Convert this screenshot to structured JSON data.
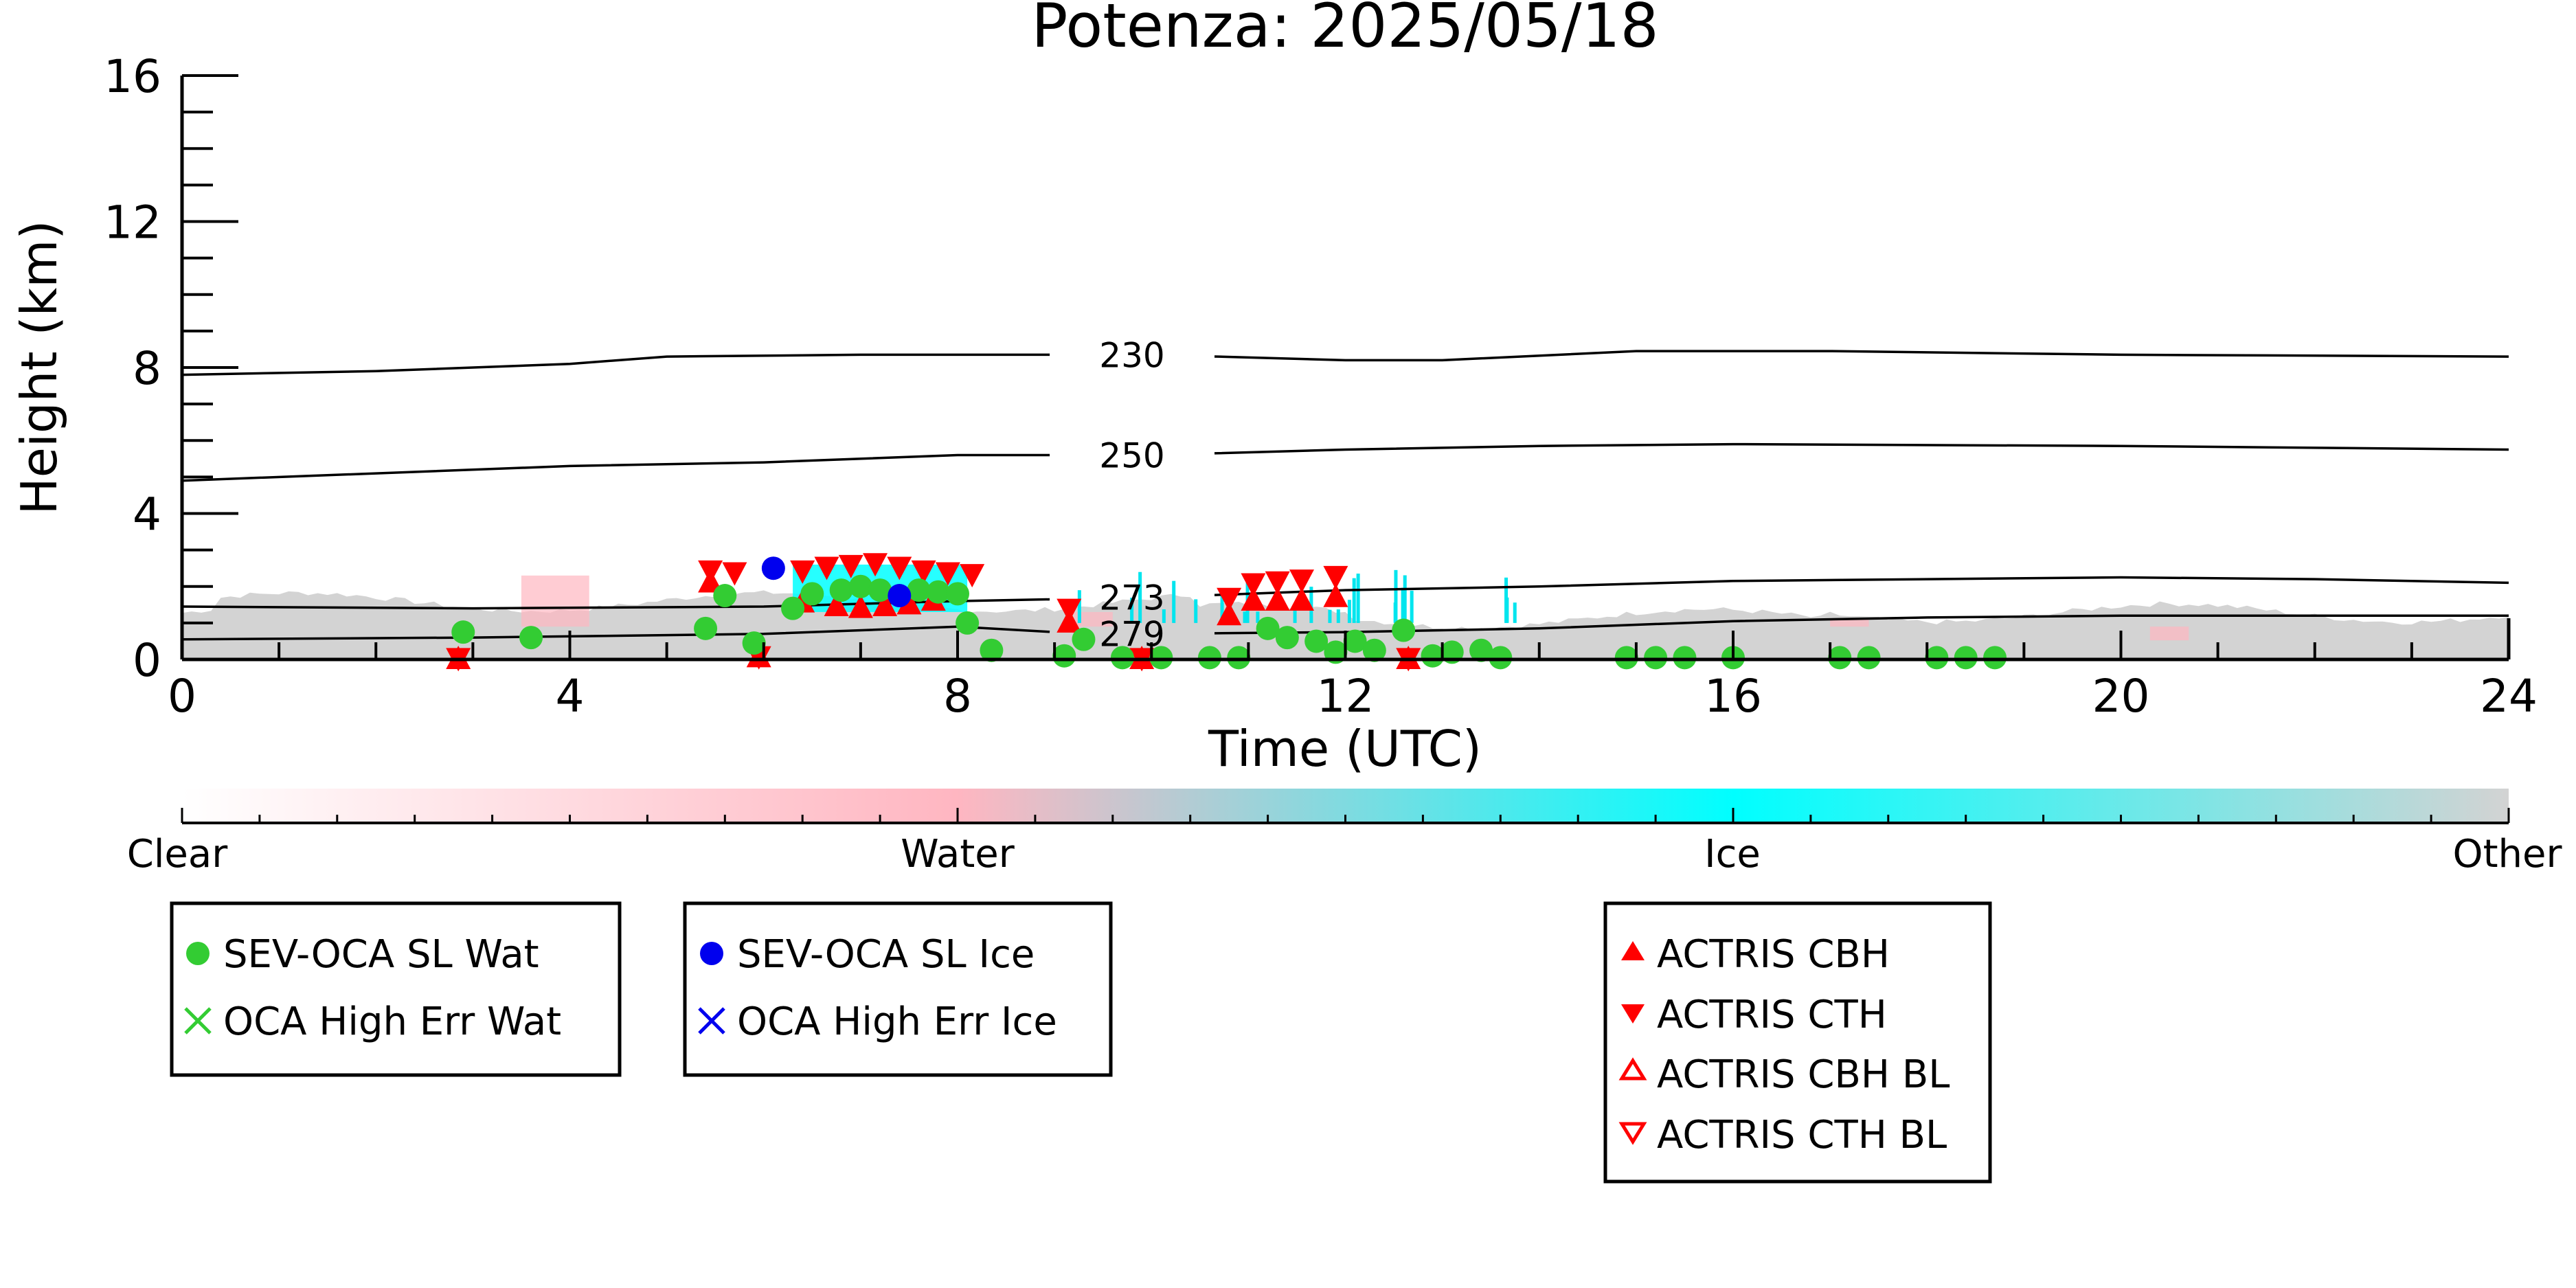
{
  "chart_data": {
    "type": "scatter",
    "title": "Potenza: 2025/05/18",
    "xlabel": "Time (UTC)",
    "ylabel": "Height (km)",
    "xlim": [
      0,
      24
    ],
    "ylim": [
      0,
      16
    ],
    "x_ticks": [
      "0",
      "4",
      "8",
      "12",
      "16",
      "20",
      "24"
    ],
    "y_ticks": [
      "0",
      "4",
      "8",
      "12",
      "16"
    ],
    "grid": false,
    "colorbar": {
      "labels": [
        "Clear",
        "Water",
        "Ice",
        "Other"
      ],
      "colors": [
        "#ffffff",
        "#ffb6c1",
        "#00ffff",
        "#d3d3d3"
      ]
    },
    "contours": [
      {
        "label": "230",
        "label_x": 9.8,
        "points": [
          [
            0,
            7.8
          ],
          [
            2,
            7.9
          ],
          [
            4,
            8.1
          ],
          [
            5,
            8.3
          ],
          [
            7,
            8.35
          ],
          [
            10,
            8.35
          ],
          [
            12,
            8.2
          ],
          [
            13,
            8.2
          ],
          [
            15,
            8.45
          ],
          [
            17,
            8.45
          ],
          [
            20,
            8.35
          ],
          [
            24,
            8.3
          ]
        ]
      },
      {
        "label": "250",
        "label_x": 9.8,
        "points": [
          [
            0,
            4.9
          ],
          [
            2,
            5.1
          ],
          [
            4,
            5.3
          ],
          [
            6,
            5.4
          ],
          [
            8,
            5.6
          ],
          [
            10,
            5.6
          ],
          [
            12,
            5.75
          ],
          [
            14,
            5.85
          ],
          [
            16,
            5.9
          ],
          [
            20,
            5.85
          ],
          [
            24,
            5.75
          ]
        ]
      },
      {
        "label": "273",
        "label_x": 9.8,
        "points": [
          [
            0,
            1.45
          ],
          [
            3,
            1.4
          ],
          [
            6,
            1.45
          ],
          [
            8,
            1.6
          ],
          [
            9,
            1.65
          ],
          [
            10.5,
            1.75
          ],
          [
            12,
            1.9
          ],
          [
            14,
            2.0
          ],
          [
            16,
            2.15
          ],
          [
            18,
            2.2
          ],
          [
            20,
            2.25
          ],
          [
            22,
            2.2
          ],
          [
            24,
            2.1
          ]
        ]
      },
      {
        "label": "279",
        "label_x": 9.8,
        "points": [
          [
            0,
            0.55
          ],
          [
            3,
            0.6
          ],
          [
            6,
            0.7
          ],
          [
            8,
            0.9
          ],
          [
            9,
            0.75
          ],
          [
            10,
            0.7
          ],
          [
            12,
            0.75
          ],
          [
            14,
            0.85
          ],
          [
            15,
            0.95
          ],
          [
            16,
            1.05
          ],
          [
            18,
            1.15
          ],
          [
            20,
            1.2
          ],
          [
            24,
            1.2
          ]
        ]
      }
    ],
    "series": [
      {
        "name": "SEV-OCA SL Wat",
        "marker": "circle",
        "color": "#33cc33",
        "points": [
          [
            2.9,
            0.75
          ],
          [
            3.6,
            0.6
          ],
          [
            5.4,
            0.85
          ],
          [
            5.6,
            1.75
          ],
          [
            5.9,
            0.45
          ],
          [
            6.3,
            1.4
          ],
          [
            6.5,
            1.8
          ],
          [
            6.8,
            1.9
          ],
          [
            7.0,
            2.0
          ],
          [
            7.2,
            1.9
          ],
          [
            7.6,
            1.9
          ],
          [
            7.8,
            1.85
          ],
          [
            8.0,
            1.8
          ],
          [
            8.1,
            1.0
          ],
          [
            8.35,
            0.25
          ],
          [
            9.1,
            0.1
          ],
          [
            9.3,
            0.55
          ],
          [
            9.7,
            0.05
          ],
          [
            10.1,
            0.05
          ],
          [
            10.6,
            0.05
          ],
          [
            10.9,
            0.05
          ],
          [
            11.2,
            0.85
          ],
          [
            11.4,
            0.6
          ],
          [
            11.7,
            0.5
          ],
          [
            11.9,
            0.2
          ],
          [
            12.1,
            0.5
          ],
          [
            12.3,
            0.25
          ],
          [
            12.6,
            0.8
          ],
          [
            12.9,
            0.1
          ],
          [
            13.1,
            0.2
          ],
          [
            13.4,
            0.25
          ],
          [
            13.6,
            0.05
          ],
          [
            14.9,
            0.05
          ],
          [
            15.2,
            0.05
          ],
          [
            15.5,
            0.05
          ],
          [
            16.0,
            0.05
          ],
          [
            17.1,
            0.05
          ],
          [
            17.4,
            0.05
          ],
          [
            18.1,
            0.05
          ],
          [
            18.4,
            0.05
          ],
          [
            18.7,
            0.05
          ]
        ]
      },
      {
        "name": "OCA High Err Wat",
        "marker": "x",
        "color": "#33cc33",
        "points": []
      },
      {
        "name": "SEV-OCA SL Ice",
        "marker": "circle",
        "color": "#0000ee",
        "points": [
          [
            6.1,
            2.5
          ],
          [
            7.4,
            1.75
          ]
        ]
      },
      {
        "name": "OCA High Err Ice",
        "marker": "x",
        "color": "#0000ee",
        "points": []
      },
      {
        "name": "ACTRIS CBH",
        "marker": "triangle-up",
        "color": "#ff0000",
        "points": [
          [
            2.85,
            0.0
          ],
          [
            5.45,
            2.1
          ],
          [
            5.95,
            0.05
          ],
          [
            6.4,
            1.55
          ],
          [
            6.75,
            1.45
          ],
          [
            7.0,
            1.4
          ],
          [
            7.25,
            1.45
          ],
          [
            7.5,
            1.5
          ],
          [
            7.75,
            1.6
          ],
          [
            9.15,
            1.0
          ],
          [
            9.9,
            0.0
          ],
          [
            10.8,
            1.2
          ],
          [
            11.05,
            1.6
          ],
          [
            11.3,
            1.6
          ],
          [
            11.55,
            1.6
          ],
          [
            11.9,
            1.7
          ],
          [
            12.65,
            0.0
          ]
        ]
      },
      {
        "name": "ACTRIS CTH",
        "marker": "triangle-down",
        "color": "#ff0000",
        "points": [
          [
            2.85,
            0.05
          ],
          [
            5.45,
            2.45
          ],
          [
            5.7,
            2.4
          ],
          [
            5.95,
            0.1
          ],
          [
            6.4,
            2.45
          ],
          [
            6.65,
            2.55
          ],
          [
            6.9,
            2.6
          ],
          [
            7.15,
            2.65
          ],
          [
            7.4,
            2.55
          ],
          [
            7.65,
            2.45
          ],
          [
            7.9,
            2.4
          ],
          [
            8.15,
            2.35
          ],
          [
            9.15,
            1.4
          ],
          [
            9.9,
            0.05
          ],
          [
            10.8,
            1.7
          ],
          [
            11.05,
            2.1
          ],
          [
            11.3,
            2.15
          ],
          [
            11.55,
            2.2
          ],
          [
            11.9,
            2.3
          ],
          [
            12.65,
            0.05
          ]
        ]
      },
      {
        "name": "ACTRIS CBH BL",
        "marker": "triangle-up-open",
        "color": "#ff0000",
        "points": []
      },
      {
        "name": "ACTRIS CTH BL",
        "marker": "triangle-down-open",
        "color": "#ff0000",
        "points": []
      }
    ],
    "legend_groups": [
      [
        "SEV-OCA SL Wat",
        "OCA High Err Wat"
      ],
      [
        "SEV-OCA SL Ice",
        "OCA High Err Ice"
      ],
      [
        "ACTRIS CBH",
        "ACTRIS CTH",
        "ACTRIS CBH BL",
        "ACTRIS CTH BL"
      ]
    ]
  }
}
